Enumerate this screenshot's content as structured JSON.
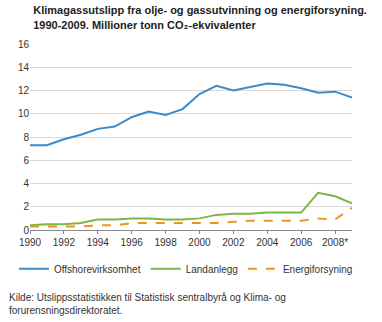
{
  "chart_data": {
    "type": "line",
    "title": "Klimagassutslipp fra olje- og gassutvinning og energiforsyning.\n1990-2009. Millioner tonn CO₂-ekvivalenter",
    "source": "Kilde: Utslippsstatistikken til Statistisk sentralbyrå og Klima- og\nforurensningsdirektoratet.",
    "x": [
      1990,
      1991,
      1992,
      1993,
      1994,
      1995,
      1996,
      1997,
      1998,
      1999,
      2000,
      2001,
      2002,
      2003,
      2004,
      2005,
      2006,
      2007,
      2008,
      2009
    ],
    "series": [
      {
        "name": "Offshorevirksomhet",
        "color": "#3b8bc9",
        "line_style": "solid",
        "values": [
          7.3,
          7.3,
          7.8,
          8.2,
          8.7,
          8.9,
          9.7,
          10.2,
          9.9,
          10.4,
          11.7,
          12.4,
          12.0,
          12.3,
          12.6,
          12.5,
          12.2,
          11.8,
          11.9,
          11.4
        ]
      },
      {
        "name": "Landanlegg",
        "color": "#7ab648",
        "line_style": "solid",
        "values": [
          0.4,
          0.5,
          0.5,
          0.6,
          0.9,
          0.9,
          1.0,
          1.0,
          0.9,
          0.9,
          1.0,
          1.3,
          1.4,
          1.4,
          1.5,
          1.5,
          1.5,
          3.2,
          2.9,
          2.3
        ]
      },
      {
        "name": "Energiforsyning",
        "color": "#f29222",
        "line_style": "dash",
        "values": [
          0.3,
          0.3,
          0.3,
          0.3,
          0.4,
          0.4,
          0.6,
          0.6,
          0.6,
          0.6,
          0.6,
          0.6,
          0.7,
          0.8,
          0.8,
          0.8,
          0.8,
          1.0,
          0.9,
          1.9
        ]
      }
    ],
    "xlim": [
      1990,
      2009
    ],
    "xticks": [
      1990,
      1992,
      1994,
      1996,
      1998,
      2000,
      2002,
      2004,
      2006,
      {
        "value": 2008,
        "label": "2008*"
      }
    ],
    "ylim": [
      0,
      16
    ],
    "yticks": [
      0,
      2,
      4,
      6,
      8,
      10,
      12,
      14,
      16
    ],
    "grid": true,
    "legend": "bottom"
  }
}
